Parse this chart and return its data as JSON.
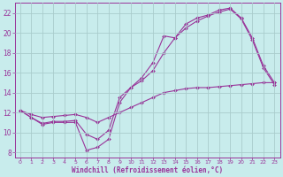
{
  "xlabel": "Windchill (Refroidissement éolien,°C)",
  "bg_color": "#c8ecec",
  "line_color": "#993399",
  "grid_color": "#aacccc",
  "xlim": [
    -0.5,
    23.5
  ],
  "ylim": [
    7.5,
    23.0
  ],
  "yticks": [
    8,
    10,
    12,
    14,
    16,
    18,
    20,
    22
  ],
  "xticks": [
    0,
    1,
    2,
    3,
    4,
    5,
    6,
    7,
    8,
    9,
    10,
    11,
    12,
    13,
    14,
    15,
    16,
    17,
    18,
    19,
    20,
    21,
    22,
    23
  ],
  "line1_x": [
    0,
    1,
    2,
    3,
    4,
    5,
    6,
    7,
    8,
    9,
    10,
    11,
    12,
    13,
    14,
    15,
    16,
    17,
    18,
    19,
    20,
    21,
    22,
    23
  ],
  "line1_y": [
    12.2,
    11.5,
    10.8,
    11.0,
    11.0,
    11.0,
    8.2,
    8.5,
    9.3,
    13.0,
    14.5,
    15.5,
    17.0,
    19.7,
    19.5,
    20.9,
    21.5,
    21.8,
    22.3,
    22.5,
    21.5,
    19.5,
    16.7,
    15.0
  ],
  "line2_x": [
    0,
    1,
    2,
    3,
    4,
    5,
    6,
    7,
    8,
    9,
    10,
    11,
    12,
    13,
    14,
    15,
    16,
    17,
    18,
    19,
    20,
    21,
    22,
    23
  ],
  "line2_y": [
    12.2,
    11.5,
    10.9,
    11.1,
    11.1,
    11.2,
    9.8,
    9.3,
    10.2,
    13.5,
    14.5,
    15.2,
    16.2,
    18.0,
    19.5,
    20.5,
    21.2,
    21.7,
    22.1,
    22.4,
    21.4,
    19.3,
    16.5,
    14.8
  ],
  "line3_x": [
    0,
    1,
    2,
    3,
    4,
    5,
    6,
    7,
    8,
    9,
    10,
    11,
    12,
    13,
    14,
    15,
    16,
    17,
    18,
    19,
    20,
    21,
    22,
    23
  ],
  "line3_y": [
    12.2,
    11.8,
    11.5,
    11.6,
    11.7,
    11.8,
    11.5,
    11.0,
    11.5,
    12.0,
    12.5,
    13.0,
    13.5,
    14.0,
    14.2,
    14.4,
    14.5,
    14.5,
    14.6,
    14.7,
    14.8,
    14.9,
    15.0,
    15.0
  ],
  "marker": "D",
  "markersize": 2.0,
  "linewidth": 0.8
}
